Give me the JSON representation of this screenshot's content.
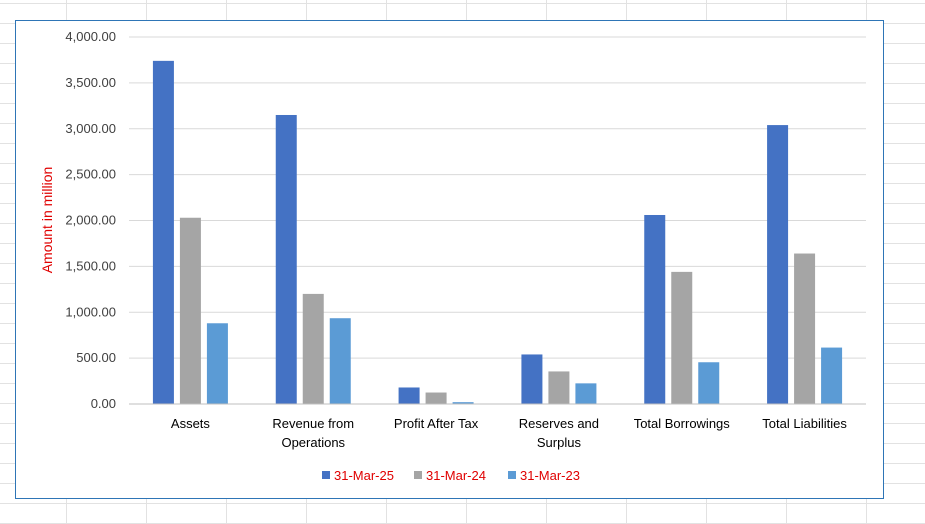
{
  "chart_data": {
    "type": "bar",
    "categories": [
      "Assets",
      "Revenue from Operations",
      "Profit After Tax",
      "Reserves and Surplus",
      "Total Borrowings",
      "Total Liabilities"
    ],
    "category_lines": [
      [
        "Assets"
      ],
      [
        "Revenue from",
        "Operations"
      ],
      [
        "Profit After Tax"
      ],
      [
        "Reserves and",
        "Surplus"
      ],
      [
        "Total Borrowings"
      ],
      [
        "Total Liabilities"
      ]
    ],
    "series": [
      {
        "name": "31-Mar-25",
        "color": "#4472c4",
        "values": [
          3740,
          3150,
          180,
          540,
          2060,
          3040
        ]
      },
      {
        "name": "31-Mar-24",
        "color": "#a5a5a5",
        "values": [
          2030,
          1200,
          125,
          355,
          1440,
          1640
        ]
      },
      {
        "name": "31-Mar-23",
        "color": "#5b9bd5",
        "values": [
          880,
          935,
          20,
          225,
          455,
          615
        ]
      }
    ],
    "ylim": [
      0,
      4000
    ],
    "yticks": [
      0,
      500,
      1000,
      1500,
      2000,
      2500,
      3000,
      3500,
      4000
    ],
    "ytick_labels": [
      "0.00",
      "500.00",
      "1,000.00",
      "1,500.00",
      "2,000.00",
      "2,500.00",
      "3,000.00",
      "3,500.00",
      "4,000.00"
    ],
    "title": "",
    "xlabel": "",
    "ylabel": "Amount in million",
    "ylabel_color": "#e00000",
    "legend_position": "bottom",
    "legend_text_color": "#e00000",
    "grid": true
  }
}
